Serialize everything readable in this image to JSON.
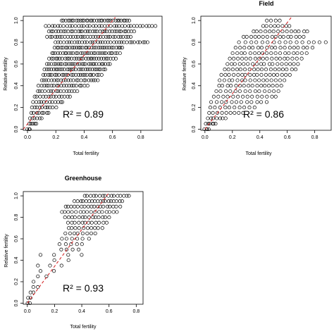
{
  "colors": {
    "points": "#000000",
    "fit_line": "#d62728",
    "frame": "#000000"
  },
  "chart_data": [
    {
      "type": "scatter",
      "title": "",
      "xlabel": "Total fertility",
      "ylabel": "Relative fertility",
      "annotation": "R² = 0.89",
      "xlim": [
        -0.03,
        0.95
      ],
      "ylim": [
        -0.01,
        1.04
      ],
      "xticks": [
        0.0,
        0.2,
        0.4,
        0.6,
        0.8
      ],
      "yticks": [
        0.0,
        0.2,
        0.4,
        0.6,
        0.8,
        1.0
      ],
      "xtick_labels": [
        "0.0",
        "0.2",
        "0.4",
        "0.6",
        "0.8"
      ],
      "ytick_labels": [
        "0.0",
        "0.2",
        "0.4",
        "0.6",
        "0.8",
        "1.0"
      ],
      "fit_line": {
        "x": [
          -0.03,
          0.62
        ],
        "y": [
          0.0,
          1.03
        ],
        "style": "dashed"
      },
      "marker": "open-circle",
      "point_rows": [
        {
          "y": 1.0,
          "x_min": 0.24,
          "x_max": 0.72,
          "n": 34
        },
        {
          "y": 0.95,
          "x_min": 0.13,
          "x_max": 0.9,
          "n": 38
        },
        {
          "y": 0.9,
          "x_min": 0.15,
          "x_max": 0.75,
          "n": 36
        },
        {
          "y": 0.85,
          "x_min": 0.14,
          "x_max": 0.73,
          "n": 34
        },
        {
          "y": 0.8,
          "x_min": 0.2,
          "x_max": 0.85,
          "n": 36
        },
        {
          "y": 0.75,
          "x_min": 0.19,
          "x_max": 0.67,
          "n": 32
        },
        {
          "y": 0.7,
          "x_min": 0.17,
          "x_max": 0.65,
          "n": 32
        },
        {
          "y": 0.65,
          "x_min": 0.15,
          "x_max": 0.62,
          "n": 30
        },
        {
          "y": 0.6,
          "x_min": 0.14,
          "x_max": 0.58,
          "n": 30
        },
        {
          "y": 0.55,
          "x_min": 0.12,
          "x_max": 0.55,
          "n": 28
        },
        {
          "y": 0.5,
          "x_min": 0.11,
          "x_max": 0.52,
          "n": 26
        },
        {
          "y": 0.45,
          "x_min": 0.1,
          "x_max": 0.5,
          "n": 24
        },
        {
          "y": 0.4,
          "x_min": 0.08,
          "x_max": 0.42,
          "n": 20
        },
        {
          "y": 0.35,
          "x_min": 0.07,
          "x_max": 0.35,
          "n": 16
        },
        {
          "y": 0.3,
          "x_min": 0.05,
          "x_max": 0.3,
          "n": 14
        },
        {
          "y": 0.25,
          "x_min": 0.04,
          "x_max": 0.25,
          "n": 12
        },
        {
          "y": 0.2,
          "x_min": 0.03,
          "x_max": 0.2,
          "n": 10
        },
        {
          "y": 0.15,
          "x_min": 0.03,
          "x_max": 0.15,
          "n": 8
        },
        {
          "y": 0.1,
          "x_min": 0.02,
          "x_max": 0.1,
          "n": 6
        },
        {
          "y": 0.05,
          "x_min": 0.01,
          "x_max": 0.06,
          "n": 5
        },
        {
          "y": 0.0,
          "x_min": 0.0,
          "x_max": 0.02,
          "n": 3
        }
      ]
    },
    {
      "type": "scatter",
      "title": "Field",
      "xlabel": "Total fertility",
      "ylabel": "Relative fertility",
      "annotation": "R² = 0.86",
      "xlim": [
        -0.03,
        0.92
      ],
      "ylim": [
        -0.01,
        1.04
      ],
      "xticks": [
        0.0,
        0.2,
        0.4,
        0.6,
        0.8
      ],
      "yticks": [
        0.0,
        0.2,
        0.4,
        0.6,
        0.8,
        1.0
      ],
      "xtick_labels": [
        "0.0",
        "0.2",
        "0.4",
        "0.6",
        "0.8"
      ],
      "ytick_labels": [
        "0.0",
        "0.2",
        "0.4",
        "0.6",
        "0.8",
        "1.0"
      ],
      "fit_line": {
        "x": [
          0.0,
          0.63
        ],
        "y": [
          0.0,
          1.03
        ],
        "style": "dashed"
      },
      "marker": "open-circle",
      "point_rows": [
        {
          "y": 1.0,
          "x_min": 0.45,
          "x_max": 0.55,
          "n": 4
        },
        {
          "y": 0.95,
          "x_min": 0.42,
          "x_max": 0.62,
          "n": 8
        },
        {
          "y": 0.9,
          "x_min": 0.35,
          "x_max": 0.75,
          "n": 14
        },
        {
          "y": 0.85,
          "x_min": 0.28,
          "x_max": 0.72,
          "n": 16
        },
        {
          "y": 0.8,
          "x_min": 0.25,
          "x_max": 0.88,
          "n": 16
        },
        {
          "y": 0.75,
          "x_min": 0.22,
          "x_max": 0.78,
          "n": 18
        },
        {
          "y": 0.7,
          "x_min": 0.2,
          "x_max": 0.74,
          "n": 18
        },
        {
          "y": 0.65,
          "x_min": 0.18,
          "x_max": 0.7,
          "n": 18
        },
        {
          "y": 0.6,
          "x_min": 0.16,
          "x_max": 0.68,
          "n": 18
        },
        {
          "y": 0.55,
          "x_min": 0.14,
          "x_max": 0.66,
          "n": 18
        },
        {
          "y": 0.5,
          "x_min": 0.12,
          "x_max": 0.62,
          "n": 18
        },
        {
          "y": 0.45,
          "x_min": 0.11,
          "x_max": 0.58,
          "n": 16
        },
        {
          "y": 0.4,
          "x_min": 0.1,
          "x_max": 0.56,
          "n": 16
        },
        {
          "y": 0.35,
          "x_min": 0.08,
          "x_max": 0.54,
          "n": 14
        },
        {
          "y": 0.3,
          "x_min": 0.06,
          "x_max": 0.52,
          "n": 14
        },
        {
          "y": 0.25,
          "x_min": 0.05,
          "x_max": 0.45,
          "n": 12
        },
        {
          "y": 0.2,
          "x_min": 0.04,
          "x_max": 0.36,
          "n": 10
        },
        {
          "y": 0.15,
          "x_min": 0.03,
          "x_max": 0.28,
          "n": 9
        },
        {
          "y": 0.1,
          "x_min": 0.02,
          "x_max": 0.15,
          "n": 7
        },
        {
          "y": 0.05,
          "x_min": 0.01,
          "x_max": 0.08,
          "n": 6
        },
        {
          "y": 0.0,
          "x_min": 0.0,
          "x_max": 0.03,
          "n": 4
        }
      ]
    },
    {
      "type": "scatter",
      "title": "Greenhouse",
      "xlabel": "Total fertility",
      "ylabel": "Relative fertility",
      "annotation": "R² = 0.93",
      "xlim": [
        -0.03,
        0.85
      ],
      "ylim": [
        -0.01,
        1.04
      ],
      "xticks": [
        0.0,
        0.2,
        0.4,
        0.6,
        0.8
      ],
      "yticks": [
        0.0,
        0.2,
        0.4,
        0.6,
        0.8,
        1.0
      ],
      "xtick_labels": [
        "0.0",
        "0.2",
        "0.4",
        "0.6",
        "0.8"
      ],
      "ytick_labels": [
        "0.0",
        "0.2",
        "0.4",
        "0.6",
        "0.8",
        "1.0"
      ],
      "fit_line": {
        "x": [
          0.0,
          0.6
        ],
        "y": [
          0.0,
          1.03
        ],
        "style": "dashed"
      },
      "marker": "open-circle",
      "point_rows": [
        {
          "y": 1.0,
          "x_min": 0.42,
          "x_max": 0.75,
          "n": 16
        },
        {
          "y": 0.95,
          "x_min": 0.35,
          "x_max": 0.7,
          "n": 18
        },
        {
          "y": 0.9,
          "x_min": 0.28,
          "x_max": 0.68,
          "n": 18
        },
        {
          "y": 0.85,
          "x_min": 0.25,
          "x_max": 0.66,
          "n": 16
        },
        {
          "y": 0.8,
          "x_min": 0.28,
          "x_max": 0.6,
          "n": 14
        },
        {
          "y": 0.75,
          "x_min": 0.3,
          "x_max": 0.58,
          "n": 12
        },
        {
          "y": 0.7,
          "x_min": 0.3,
          "x_max": 0.55,
          "n": 10
        },
        {
          "y": 0.65,
          "x_min": 0.28,
          "x_max": 0.5,
          "n": 8
        },
        {
          "y": 0.6,
          "x_min": 0.25,
          "x_max": 0.45,
          "n": 6
        },
        {
          "y": 0.55,
          "x_min": 0.24,
          "x_max": 0.4,
          "n": 5
        },
        {
          "y": 0.5,
          "x_min": 0.25,
          "x_max": 0.38,
          "n": 4
        },
        {
          "y": 0.45,
          "x_min": 0.1,
          "x_max": 0.4,
          "n": 4
        },
        {
          "y": 0.4,
          "x_min": 0.2,
          "x_max": 0.3,
          "n": 2
        },
        {
          "y": 0.35,
          "x_min": 0.08,
          "x_max": 0.25,
          "n": 3
        },
        {
          "y": 0.3,
          "x_min": 0.1,
          "x_max": 0.2,
          "n": 2
        },
        {
          "y": 0.25,
          "x_min": 0.08,
          "x_max": 0.14,
          "n": 2
        },
        {
          "y": 0.2,
          "x_min": 0.05,
          "x_max": 0.05,
          "n": 1
        },
        {
          "y": 0.15,
          "x_min": 0.04,
          "x_max": 0.08,
          "n": 2
        },
        {
          "y": 0.1,
          "x_min": 0.02,
          "x_max": 0.05,
          "n": 2
        },
        {
          "y": 0.05,
          "x_min": 0.01,
          "x_max": 0.02,
          "n": 2
        },
        {
          "y": 0.0,
          "x_min": 0.0,
          "x_max": 0.02,
          "n": 2
        }
      ]
    }
  ]
}
